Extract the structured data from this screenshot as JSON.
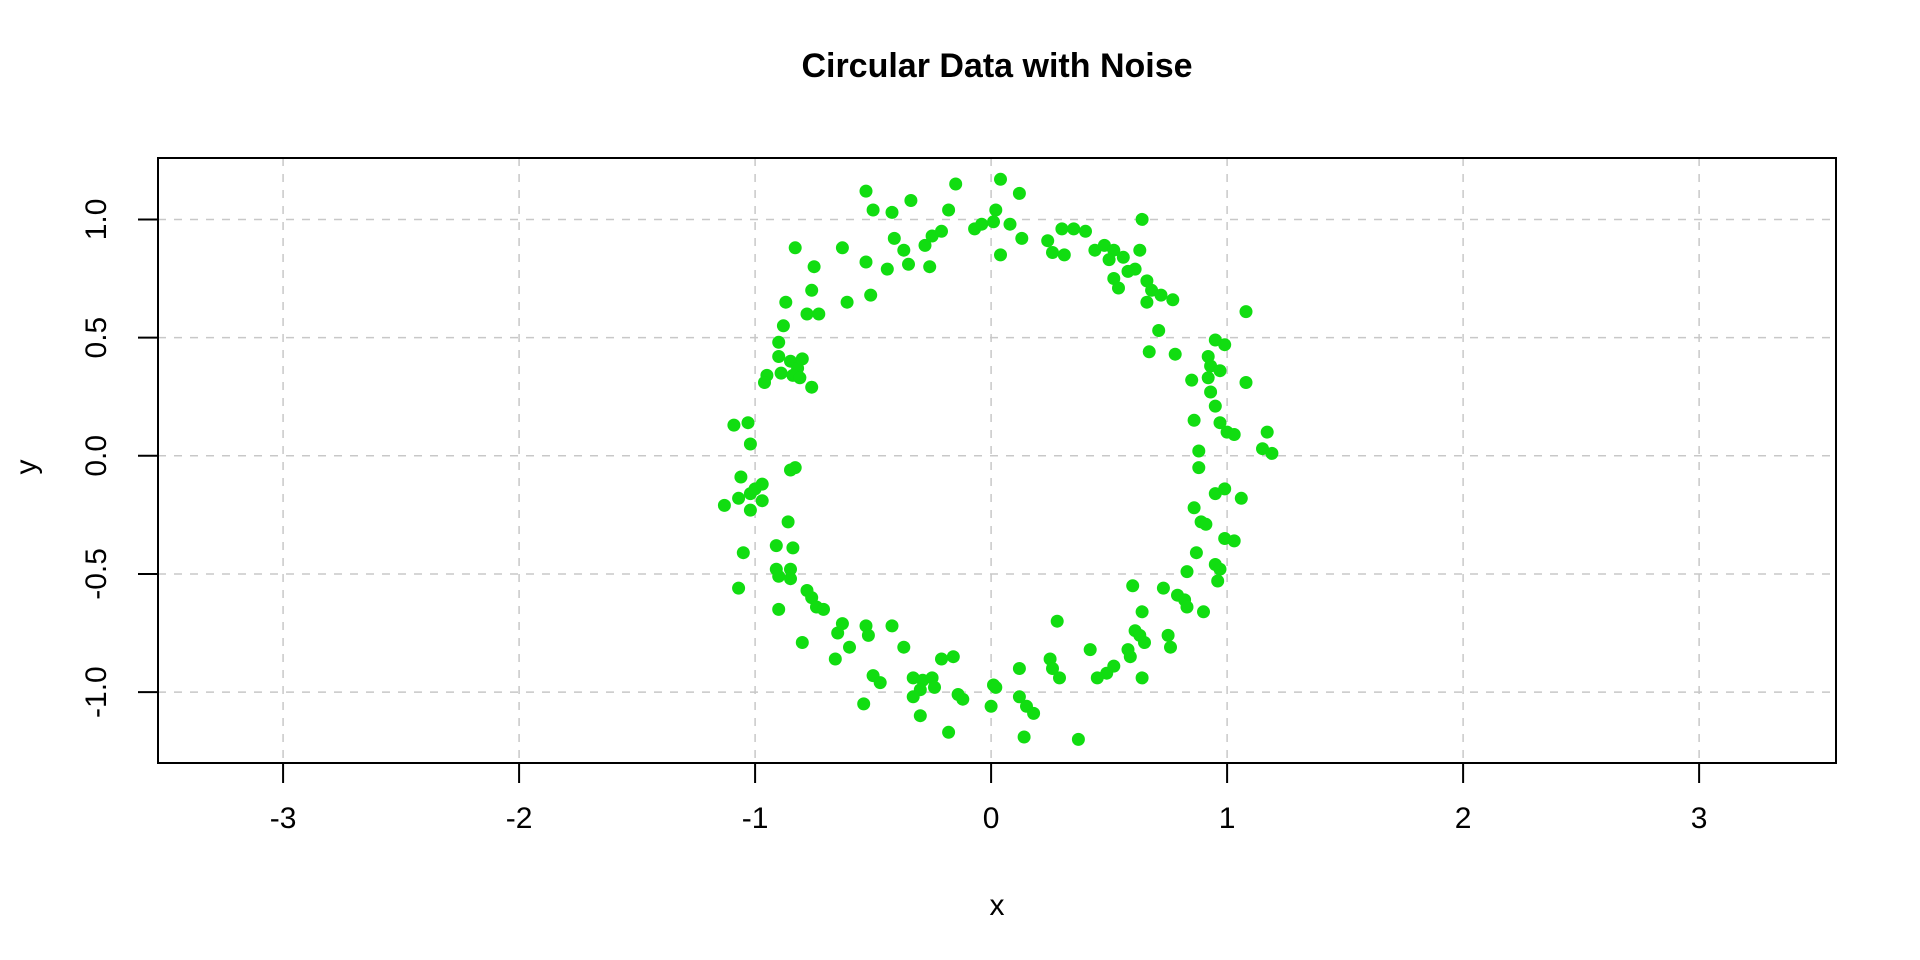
{
  "chart_data": {
    "type": "scatter",
    "title": "Circular Data with Noise",
    "xlabel": "x",
    "ylabel": "y",
    "xlim": [
      -3.53,
      3.58
    ],
    "ylim": [
      -1.3,
      1.26
    ],
    "x_ticks": [
      -3,
      -2,
      -1,
      0,
      1,
      2,
      3
    ],
    "x_tick_labels": [
      "-3",
      "-2",
      "-1",
      "0",
      "1",
      "2",
      "3"
    ],
    "y_ticks": [
      -1,
      -0.5,
      0,
      0.5,
      1
    ],
    "y_tick_labels": [
      "-1.0",
      "-0.5",
      "0.0",
      "0.5",
      "1.0"
    ],
    "grid": true,
    "grid_style": "dashed",
    "legend": false,
    "marker": "filled-circle",
    "point_color": "#11DD11",
    "axis_color": "#000000",
    "grid_color": "#c8c8c8",
    "background": "#ffffff",
    "points": [
      [
        -0.53,
        1.12
      ],
      [
        -0.34,
        1.08
      ],
      [
        -0.15,
        1.15
      ],
      [
        -0.5,
        1.04
      ],
      [
        -0.42,
        1.03
      ],
      [
        -0.18,
        1.04
      ],
      [
        -0.83,
        0.88
      ],
      [
        -0.63,
        0.88
      ],
      [
        -0.75,
        0.8
      ],
      [
        -0.53,
        0.82
      ],
      [
        -0.44,
        0.79
      ],
      [
        -0.41,
        0.92
      ],
      [
        -0.37,
        0.87
      ],
      [
        -0.35,
        0.81
      ],
      [
        -0.28,
        0.89
      ],
      [
        -0.25,
        0.93
      ],
      [
        -0.21,
        0.95
      ],
      [
        -0.26,
        0.8
      ],
      [
        -0.07,
        0.96
      ],
      [
        -0.04,
        0.98
      ],
      [
        -0.51,
        0.68
      ],
      [
        -0.61,
        0.65
      ],
      [
        -0.76,
        0.7
      ],
      [
        -0.78,
        0.6
      ],
      [
        -0.73,
        0.6
      ],
      [
        -0.87,
        0.65
      ],
      [
        -0.88,
        0.55
      ],
      [
        -0.9,
        0.48
      ],
      [
        -0.9,
        0.42
      ],
      [
        -0.85,
        0.4
      ],
      [
        -0.82,
        0.37
      ],
      [
        -0.84,
        0.34
      ],
      [
        -0.89,
        0.35
      ],
      [
        -0.8,
        0.41
      ],
      [
        -0.95,
        0.34
      ],
      [
        -0.96,
        0.31
      ],
      [
        -0.81,
        0.33
      ],
      [
        -0.76,
        0.29
      ],
      [
        -1.09,
        0.13
      ],
      [
        -1.03,
        0.14
      ],
      [
        -1.02,
        0.05
      ],
      [
        0.04,
        1.17
      ],
      [
        0.12,
        1.11
      ],
      [
        0.02,
        1.04
      ],
      [
        0.01,
        0.99
      ],
      [
        0.08,
        0.98
      ],
      [
        0.13,
        0.92
      ],
      [
        0.04,
        0.85
      ],
      [
        0.3,
        0.96
      ],
      [
        0.35,
        0.96
      ],
      [
        0.4,
        0.95
      ],
      [
        0.24,
        0.91
      ],
      [
        0.26,
        0.86
      ],
      [
        0.31,
        0.85
      ],
      [
        0.44,
        0.87
      ],
      [
        0.48,
        0.89
      ],
      [
        0.52,
        0.87
      ],
      [
        0.5,
        0.83
      ],
      [
        0.56,
        0.84
      ],
      [
        0.61,
        0.79
      ],
      [
        0.63,
        0.87
      ],
      [
        0.64,
        1.0
      ],
      [
        0.52,
        0.75
      ],
      [
        0.54,
        0.71
      ],
      [
        0.58,
        0.78
      ],
      [
        0.66,
        0.74
      ],
      [
        0.68,
        0.7
      ],
      [
        0.66,
        0.65
      ],
      [
        0.72,
        0.68
      ],
      [
        0.77,
        0.66
      ],
      [
        0.71,
        0.53
      ],
      [
        0.67,
        0.44
      ],
      [
        0.78,
        0.43
      ],
      [
        1.08,
        0.61
      ],
      [
        0.92,
        0.42
      ],
      [
        0.93,
        0.38
      ],
      [
        0.95,
        0.49
      ],
      [
        0.99,
        0.47
      ],
      [
        0.85,
        0.32
      ],
      [
        0.92,
        0.33
      ],
      [
        0.97,
        0.36
      ],
      [
        1.08,
        0.31
      ],
      [
        0.93,
        0.27
      ],
      [
        0.95,
        0.21
      ],
      [
        0.86,
        0.15
      ],
      [
        0.97,
        0.14
      ],
      [
        1.0,
        0.1
      ],
      [
        1.03,
        0.09
      ],
      [
        1.17,
        0.1
      ],
      [
        0.88,
        0.02
      ],
      [
        1.15,
        0.03
      ],
      [
        1.19,
        0.01
      ],
      [
        -1.06,
        -0.09
      ],
      [
        -1.13,
        -0.21
      ],
      [
        -1.07,
        -0.18
      ],
      [
        -1.02,
        -0.16
      ],
      [
        -1.0,
        -0.14
      ],
      [
        -0.97,
        -0.12
      ],
      [
        -1.02,
        -0.23
      ],
      [
        -0.97,
        -0.19
      ],
      [
        -0.85,
        -0.06
      ],
      [
        -0.83,
        -0.05
      ],
      [
        -0.86,
        -0.28
      ],
      [
        -1.05,
        -0.41
      ],
      [
        -0.91,
        -0.38
      ],
      [
        -0.84,
        -0.39
      ],
      [
        -0.91,
        -0.48
      ],
      [
        -0.9,
        -0.51
      ],
      [
        -0.85,
        -0.48
      ],
      [
        -0.85,
        -0.52
      ],
      [
        -1.07,
        -0.56
      ],
      [
        -0.9,
        -0.65
      ],
      [
        -0.78,
        -0.57
      ],
      [
        -0.76,
        -0.6
      ],
      [
        -0.74,
        -0.64
      ],
      [
        -0.71,
        -0.65
      ],
      [
        -0.8,
        -0.79
      ],
      [
        -0.65,
        -0.75
      ],
      [
        -0.63,
        -0.71
      ],
      [
        -0.6,
        -0.81
      ],
      [
        -0.66,
        -0.86
      ],
      [
        -0.53,
        -0.72
      ],
      [
        -0.52,
        -0.76
      ],
      [
        -0.42,
        -0.72
      ],
      [
        -0.37,
        -0.81
      ],
      [
        -0.5,
        -0.93
      ],
      [
        -0.47,
        -0.96
      ],
      [
        -0.54,
        -1.05
      ],
      [
        -0.33,
        -0.94
      ],
      [
        -0.29,
        -0.95
      ],
      [
        -0.3,
        -0.99
      ],
      [
        -0.33,
        -1.02
      ],
      [
        -0.25,
        -0.94
      ],
      [
        -0.24,
        -0.98
      ],
      [
        -0.21,
        -0.86
      ],
      [
        -0.16,
        -0.85
      ],
      [
        -0.3,
        -1.1
      ],
      [
        -0.18,
        -1.17
      ],
      [
        -0.14,
        -1.01
      ],
      [
        -0.12,
        -1.03
      ],
      [
        0.01,
        -0.97
      ],
      [
        0.0,
        -1.06
      ],
      [
        0.88,
        -0.05
      ],
      [
        0.95,
        -0.16
      ],
      [
        0.99,
        -0.14
      ],
      [
        1.06,
        -0.18
      ],
      [
        0.86,
        -0.22
      ],
      [
        0.89,
        -0.28
      ],
      [
        0.91,
        -0.29
      ],
      [
        0.87,
        -0.41
      ],
      [
        0.99,
        -0.35
      ],
      [
        1.03,
        -0.36
      ],
      [
        0.95,
        -0.46
      ],
      [
        0.97,
        -0.48
      ],
      [
        0.83,
        -0.49
      ],
      [
        0.96,
        -0.53
      ],
      [
        0.6,
        -0.55
      ],
      [
        0.73,
        -0.56
      ],
      [
        0.79,
        -0.59
      ],
      [
        0.82,
        -0.61
      ],
      [
        0.83,
        -0.64
      ],
      [
        0.9,
        -0.66
      ],
      [
        0.64,
        -0.66
      ],
      [
        0.28,
        -0.7
      ],
      [
        0.61,
        -0.74
      ],
      [
        0.63,
        -0.76
      ],
      [
        0.42,
        -0.82
      ],
      [
        0.75,
        -0.76
      ],
      [
        0.76,
        -0.81
      ],
      [
        0.65,
        -0.79
      ],
      [
        0.58,
        -0.82
      ],
      [
        0.59,
        -0.85
      ],
      [
        0.52,
        -0.89
      ],
      [
        0.49,
        -0.92
      ],
      [
        0.45,
        -0.94
      ],
      [
        0.25,
        -0.86
      ],
      [
        0.26,
        -0.9
      ],
      [
        0.29,
        -0.94
      ],
      [
        0.64,
        -0.94
      ],
      [
        0.12,
        -0.9
      ],
      [
        0.12,
        -1.02
      ],
      [
        0.15,
        -1.06
      ],
      [
        0.18,
        -1.09
      ],
      [
        0.02,
        -0.98
      ],
      [
        0.14,
        -1.19
      ],
      [
        0.37,
        -1.2
      ]
    ]
  }
}
